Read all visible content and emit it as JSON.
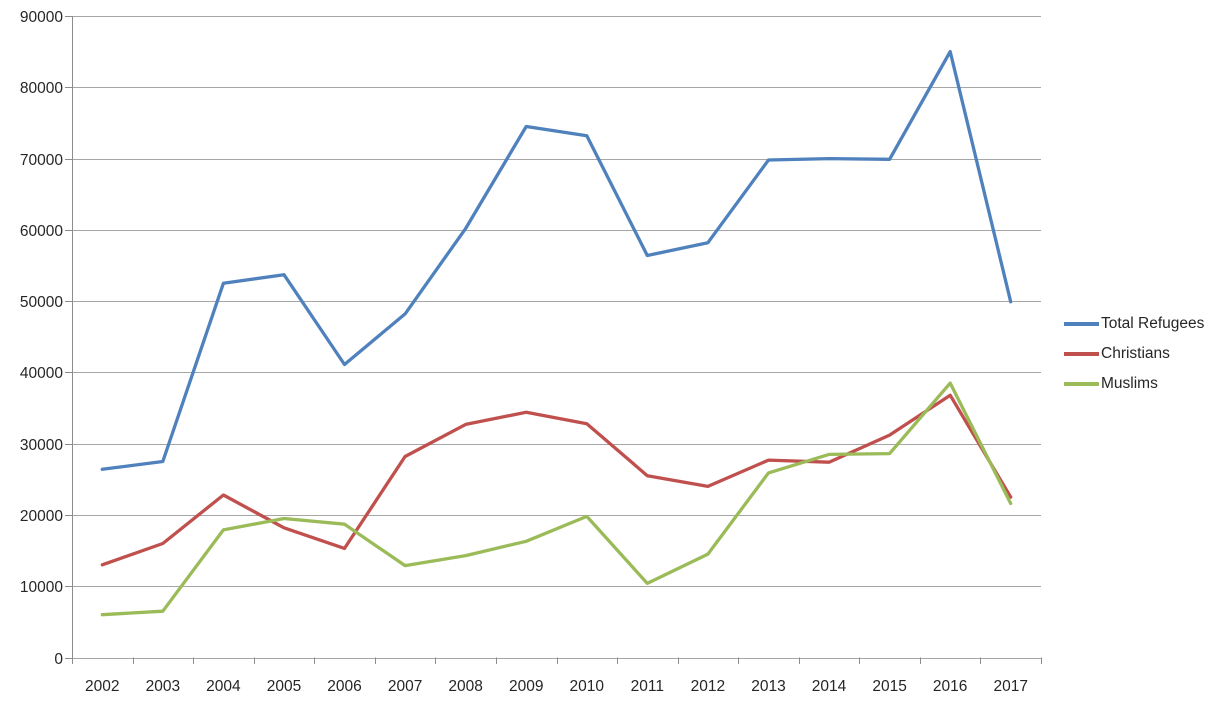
{
  "chart_data": {
    "type": "line",
    "title": "",
    "xlabel": "",
    "ylabel": "",
    "categories": [
      "2002",
      "2003",
      "2004",
      "2005",
      "2006",
      "2007",
      "2008",
      "2009",
      "2010",
      "2011",
      "2012",
      "2013",
      "2014",
      "2015",
      "2016",
      "2017"
    ],
    "series": [
      {
        "name": "Total Refugees",
        "color": "#4F81BD",
        "values": [
          26400,
          27500,
          52500,
          53700,
          41100,
          48200,
          60200,
          74500,
          73200,
          56400,
          58200,
          69800,
          70000,
          69900,
          85000,
          49900
        ]
      },
      {
        "name": "Christians",
        "color": "#C0504D",
        "values": [
          13000,
          16000,
          22800,
          18200,
          15300,
          28200,
          32700,
          34400,
          32800,
          25500,
          24000,
          27700,
          27400,
          31200,
          36800,
          22500
        ]
      },
      {
        "name": "Muslims",
        "color": "#9BBB59",
        "values": [
          6000,
          6500,
          17900,
          19500,
          18700,
          12900,
          14300,
          16300,
          19800,
          10400,
          14500,
          25900,
          28500,
          28600,
          38500,
          21600
        ]
      }
    ],
    "ylim": [
      0,
      90000
    ],
    "ytick_interval": 10000,
    "ytick_labels": [
      "0",
      "10000",
      "20000",
      "30000",
      "40000",
      "50000",
      "60000",
      "70000",
      "80000",
      "90000"
    ],
    "grid": true,
    "legend_position": "right"
  },
  "style": {
    "gridline_color": "#A6A6A6",
    "axis_color": "#8C8C8C",
    "label_color": "#262626"
  }
}
